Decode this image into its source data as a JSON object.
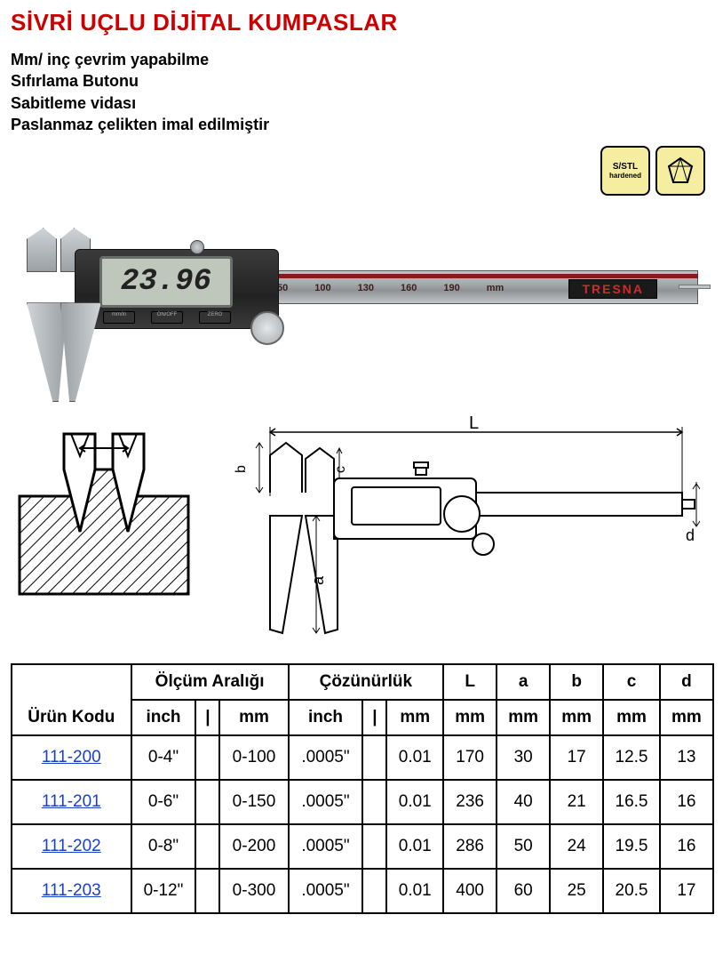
{
  "title": "SİVRİ UÇLU DİJİTAL KUMPASLAR",
  "title_color": "#cc0000",
  "features": [
    "Mm/ inç çevrim yapabilme",
    "Sıfırlama Butonu",
    "Sabitleme vidası",
    "Paslanmaz çelikten imal edilmiştir"
  ],
  "badges": {
    "sstl": {
      "line1": "S/STL",
      "line2": "hardened"
    },
    "diamond": "diamond"
  },
  "caliper": {
    "display_value": "23.96",
    "scale_marks": [
      "50",
      "100",
      "130",
      "160",
      "190",
      "mm"
    ],
    "brand": "TRESNA",
    "button_labels": [
      "mm/in",
      "ON/OFF",
      "ZERO"
    ]
  },
  "schematic": {
    "dim_labels": [
      "L",
      "a",
      "b",
      "c",
      "d"
    ]
  },
  "table": {
    "header_groups": {
      "urun_kodu": "Ürün Kodu",
      "olcum_araligi": "Ölçüm Aralığı",
      "cozunurluk": "Çözünürlük",
      "L": "L",
      "a": "a",
      "b": "b",
      "c": "c",
      "d": "d"
    },
    "header_units": {
      "olcum_inch": "inch",
      "olcum_mm": "mm",
      "coz_inch": "inch",
      "coz_mm": "mm",
      "L": "mm",
      "a": "mm",
      "b": "mm",
      "c": "mm",
      "d": "mm"
    },
    "sep_char": "|",
    "rows": [
      {
        "code": "111-200",
        "range_in": "0-4\"",
        "range_mm": "0-100",
        "res_in": ".0005\"",
        "res_mm": "0.01",
        "L": "170",
        "a": "30",
        "b": "17",
        "c": "12.5",
        "d": "13"
      },
      {
        "code": "111-201",
        "range_in": "0-6\"",
        "range_mm": "0-150",
        "res_in": ".0005\"",
        "res_mm": "0.01",
        "L": "236",
        "a": "40",
        "b": "21",
        "c": "16.5",
        "d": "16"
      },
      {
        "code": "111-202",
        "range_in": "0-8\"",
        "range_mm": "0-200",
        "res_in": ".0005\"",
        "res_mm": "0.01",
        "L": "286",
        "a": "50",
        "b": "24",
        "c": "19.5",
        "d": "16"
      },
      {
        "code": "111-203",
        "range_in": "0-12\"",
        "range_mm": "0-300",
        "res_in": ".0005\"",
        "res_mm": "0.01",
        "L": "400",
        "a": "60",
        "b": "25",
        "c": "20.5",
        "d": "17"
      }
    ],
    "link_color": "#1a3fc9"
  }
}
